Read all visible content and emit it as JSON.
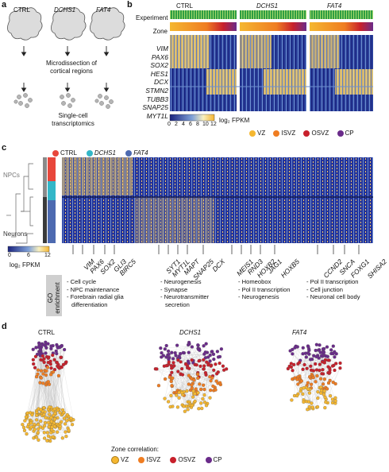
{
  "panels": {
    "a": "a",
    "b": "b",
    "c": "c",
    "d": "d"
  },
  "panel_a": {
    "conditions": [
      "CTRL",
      "DCHS1",
      "FAT4"
    ],
    "step1": [
      "Microdissection of",
      "cortical regions"
    ],
    "step2": [
      "Single-cell",
      "transcriptomics"
    ]
  },
  "panel_b": {
    "groups": [
      "CTRL",
      "DCHS1",
      "FAT4"
    ],
    "row_labels": {
      "experiment": "Experiment",
      "zone": "Zone"
    },
    "genes": [
      "VIM",
      "PAX6",
      "SOX2",
      "HES1",
      "DCX",
      "STMN2",
      "TUBB3",
      "SNAP25",
      "MYT1L"
    ],
    "colorbar_ticks": [
      "0",
      "2",
      "4",
      "6",
      "8",
      "10",
      "12"
    ],
    "colorbar_label": "log₂ FPKM",
    "zone_legend": [
      "VZ",
      "ISVZ",
      "OSVZ",
      "CP"
    ]
  },
  "panel_c": {
    "legend": [
      "CTRL",
      "DCHS1",
      "FAT4"
    ],
    "cluster_labels": {
      "npcs": "NPCs",
      "neurons": "Neurons"
    },
    "colorbar_ticks": [
      "0",
      "6",
      "12"
    ],
    "colorbar_label": "log₂ FPKM",
    "genes": [
      "VIM",
      "PAX6",
      "SOX2",
      "GLI3",
      "BIRC5",
      "SYT1",
      "MYT1L",
      "MAPT",
      "SNAP25",
      "DCX",
      "MEIS1",
      "RND3",
      "HOXB2",
      "JAG1",
      "HOXB5",
      "CCND2",
      "SNCA",
      "FOXG1",
      "SHISA2"
    ],
    "go_label": "GO enrichment",
    "go_terms": [
      [
        "- Cell cycle",
        "- NPC maintenance",
        "- Forebrain radial glia",
        "differentiation"
      ],
      [
        "- Neurogenesis",
        "- Synapse",
        "- Neurotransmitter",
        "secretion"
      ],
      [
        "- Homeobox",
        "- Pol II transcription",
        "- Neurogenesis"
      ],
      [
        "- Pol II transcription",
        "- Cell junction",
        "- Neuronal cell body"
      ]
    ]
  },
  "panel_d": {
    "titles": [
      "CTRL",
      "DCHS1",
      "FAT4"
    ],
    "legend_title": "Zone correlation:",
    "zone_legend": [
      "VZ",
      "ISVZ",
      "OSVZ",
      "CP"
    ]
  },
  "colors": {
    "VZ": "#f5b730",
    "ISVZ": "#ef7d22",
    "OSVZ": "#c8202b",
    "CP": "#6a2b8a",
    "CTRL": "#e8473c",
    "DCHS1": "#33b7c8",
    "FAT4": "#4d6ab0",
    "heat_low": "#1a237e",
    "heat_mid": "#5c7fc4",
    "heat_high": "#f5b530",
    "experiment": "#2f9e44"
  },
  "icons": {
    "organoid": "organoid-icon",
    "cells": "cells-icon",
    "arrow": "arrow-down-icon"
  }
}
